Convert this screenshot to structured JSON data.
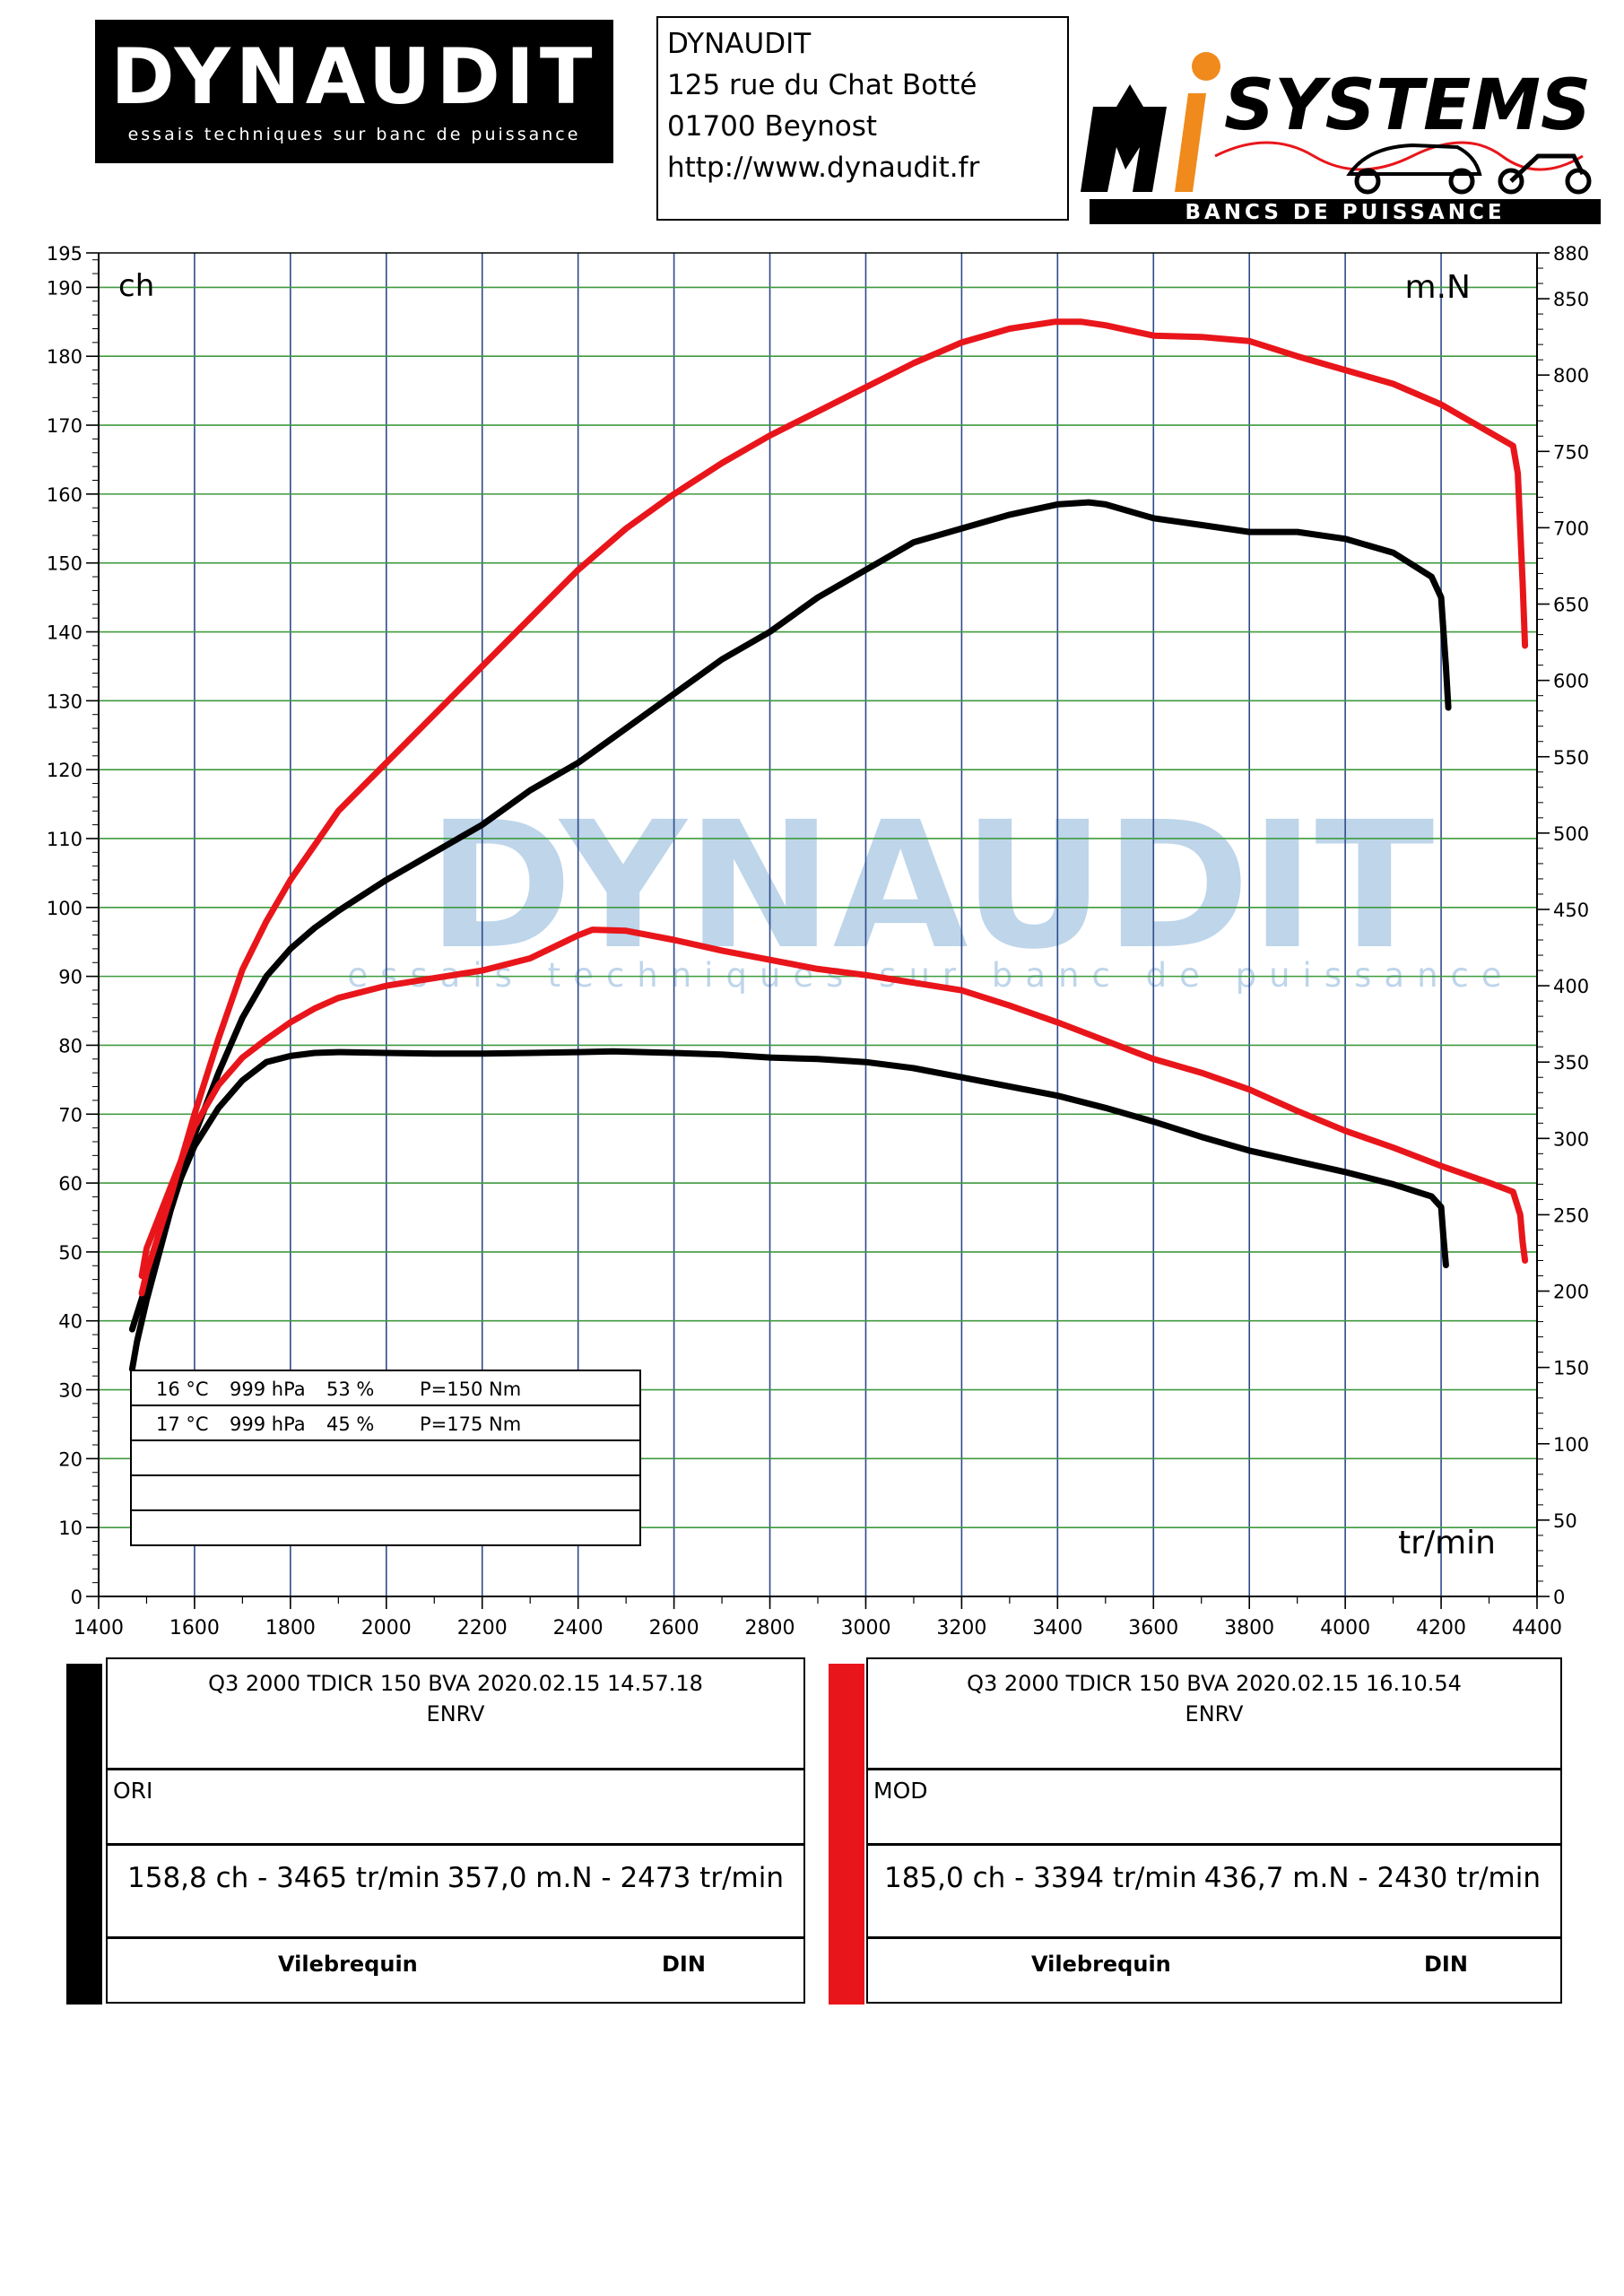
{
  "header": {
    "logo_text": "DYNAUDIT",
    "logo_tagline": "essais techniques sur banc de puissance",
    "address_lines": [
      "DYNAUDIT",
      "125 rue du Chat Botté",
      "01700 Beynost",
      "http://www.dynaudit.fr"
    ],
    "mi_logo_text": "SYSTEMS",
    "mi_logo_tagline": "BANCS DE PUISSANCE"
  },
  "colors": {
    "ori": "#000000",
    "mod": "#e8161b",
    "grid_h": "#3f9a3f",
    "grid_v": "#2e4a8a",
    "watermark": "#a9c7e4"
  },
  "watermark": {
    "text": "DYNAUDIT",
    "tagline": "essais techniques sur banc de puissance"
  },
  "conditions_table": {
    "rows": [
      [
        "16 °C",
        "999 hPa",
        "53 %",
        "P=150 Nm"
      ],
      [
        "17 °C",
        "999 hPa",
        "45 %",
        "P=175 Nm"
      ],
      [
        "",
        "",
        "",
        ""
      ],
      [
        "",
        "",
        "",
        ""
      ],
      [
        "",
        "",
        "",
        ""
      ]
    ]
  },
  "chart_data": {
    "type": "line",
    "left_axis_unit": "ch",
    "right_axis_unit": "m.N",
    "x_axis_unit": "tr/min",
    "xlim": [
      1400,
      4400
    ],
    "xticks": [
      1400,
      1600,
      1800,
      2000,
      2200,
      2400,
      2600,
      2800,
      3000,
      3200,
      3400,
      3600,
      3800,
      4000,
      4200,
      4400
    ],
    "ylim_left": [
      0,
      195
    ],
    "yticks_left": [
      0,
      10,
      20,
      30,
      40,
      50,
      60,
      70,
      80,
      90,
      100,
      110,
      120,
      130,
      140,
      150,
      160,
      170,
      180,
      190,
      195
    ],
    "ylim_right": [
      0,
      880
    ],
    "yticks_right": [
      0,
      50,
      100,
      150,
      200,
      250,
      300,
      350,
      400,
      450,
      500,
      550,
      600,
      650,
      700,
      750,
      800,
      850,
      880
    ],
    "series": [
      {
        "name": "ORI",
        "kind": "power",
        "axis": "left",
        "color": "#000000",
        "points": [
          [
            1470,
            33
          ],
          [
            1480,
            37
          ],
          [
            1500,
            43
          ],
          [
            1550,
            56
          ],
          [
            1600,
            67
          ],
          [
            1650,
            76
          ],
          [
            1700,
            84
          ],
          [
            1750,
            90
          ],
          [
            1800,
            94
          ],
          [
            1850,
            97
          ],
          [
            1900,
            99.5
          ],
          [
            2000,
            104
          ],
          [
            2100,
            108
          ],
          [
            2200,
            112
          ],
          [
            2300,
            117
          ],
          [
            2400,
            121
          ],
          [
            2500,
            126
          ],
          [
            2600,
            131
          ],
          [
            2700,
            136
          ],
          [
            2800,
            140
          ],
          [
            2900,
            145
          ],
          [
            3000,
            149
          ],
          [
            3100,
            153
          ],
          [
            3200,
            155
          ],
          [
            3300,
            157
          ],
          [
            3400,
            158.5
          ],
          [
            3465,
            158.8
          ],
          [
            3500,
            158.5
          ],
          [
            3600,
            156.5
          ],
          [
            3700,
            155.5
          ],
          [
            3800,
            154.5
          ],
          [
            3900,
            154.5
          ],
          [
            4000,
            153.5
          ],
          [
            4100,
            151.5
          ],
          [
            4180,
            148
          ],
          [
            4200,
            145
          ],
          [
            4205,
            140
          ],
          [
            4210,
            135
          ],
          [
            4215,
            129
          ]
        ]
      },
      {
        "name": "ORI",
        "kind": "torque",
        "axis": "right",
        "color": "#000000",
        "points": [
          [
            1470,
            175
          ],
          [
            1500,
            205
          ],
          [
            1550,
            258
          ],
          [
            1600,
            295
          ],
          [
            1650,
            320
          ],
          [
            1700,
            338
          ],
          [
            1750,
            350
          ],
          [
            1800,
            354
          ],
          [
            1850,
            356
          ],
          [
            1900,
            356.5
          ],
          [
            2000,
            356
          ],
          [
            2100,
            355.5
          ],
          [
            2200,
            355.5
          ],
          [
            2300,
            356
          ],
          [
            2400,
            356.5
          ],
          [
            2473,
            357
          ],
          [
            2600,
            356
          ],
          [
            2700,
            355
          ],
          [
            2800,
            353
          ],
          [
            2900,
            352
          ],
          [
            3000,
            350
          ],
          [
            3100,
            346
          ],
          [
            3200,
            340
          ],
          [
            3300,
            334
          ],
          [
            3400,
            328
          ],
          [
            3500,
            320
          ],
          [
            3600,
            311
          ],
          [
            3700,
            301
          ],
          [
            3800,
            292
          ],
          [
            3900,
            285
          ],
          [
            4000,
            278
          ],
          [
            4100,
            270
          ],
          [
            4180,
            262
          ],
          [
            4200,
            255
          ],
          [
            4205,
            235
          ],
          [
            4210,
            217
          ]
        ]
      },
      {
        "name": "MOD",
        "kind": "power",
        "axis": "left",
        "color": "#e8161b",
        "points": [
          [
            1490,
            44
          ],
          [
            1500,
            47
          ],
          [
            1550,
            58
          ],
          [
            1600,
            70
          ],
          [
            1650,
            81
          ],
          [
            1700,
            91
          ],
          [
            1750,
            98
          ],
          [
            1800,
            104
          ],
          [
            1850,
            109
          ],
          [
            1900,
            114
          ],
          [
            2000,
            121
          ],
          [
            2100,
            128
          ],
          [
            2200,
            135
          ],
          [
            2300,
            142
          ],
          [
            2400,
            149
          ],
          [
            2500,
            155
          ],
          [
            2600,
            160
          ],
          [
            2700,
            164.5
          ],
          [
            2800,
            168.5
          ],
          [
            2900,
            172
          ],
          [
            3000,
            175.5
          ],
          [
            3100,
            179
          ],
          [
            3200,
            182
          ],
          [
            3300,
            184
          ],
          [
            3394,
            185
          ],
          [
            3450,
            185
          ],
          [
            3500,
            184.5
          ],
          [
            3600,
            183
          ],
          [
            3700,
            182.8
          ],
          [
            3800,
            182.2
          ],
          [
            3900,
            180
          ],
          [
            4000,
            178
          ],
          [
            4100,
            176
          ],
          [
            4200,
            173
          ],
          [
            4300,
            169
          ],
          [
            4350,
            167
          ],
          [
            4360,
            163
          ],
          [
            4365,
            155
          ],
          [
            4370,
            147
          ],
          [
            4375,
            138
          ]
        ]
      },
      {
        "name": "MOD",
        "kind": "torque",
        "axis": "right",
        "color": "#e8161b",
        "points": [
          [
            1490,
            210
          ],
          [
            1500,
            228
          ],
          [
            1550,
            268
          ],
          [
            1600,
            308
          ],
          [
            1650,
            335
          ],
          [
            1700,
            353
          ],
          [
            1750,
            365
          ],
          [
            1800,
            376
          ],
          [
            1850,
            385
          ],
          [
            1900,
            392
          ],
          [
            2000,
            400
          ],
          [
            2100,
            405
          ],
          [
            2200,
            410
          ],
          [
            2300,
            418
          ],
          [
            2400,
            433
          ],
          [
            2430,
            436.7
          ],
          [
            2500,
            436
          ],
          [
            2600,
            430
          ],
          [
            2700,
            423
          ],
          [
            2800,
            417
          ],
          [
            2900,
            411
          ],
          [
            3000,
            407
          ],
          [
            3100,
            402
          ],
          [
            3200,
            397
          ],
          [
            3300,
            387
          ],
          [
            3400,
            376
          ],
          [
            3500,
            364
          ],
          [
            3600,
            352
          ],
          [
            3700,
            343
          ],
          [
            3800,
            332
          ],
          [
            3900,
            318
          ],
          [
            4000,
            305
          ],
          [
            4100,
            294
          ],
          [
            4200,
            282
          ],
          [
            4300,
            271
          ],
          [
            4350,
            265
          ],
          [
            4365,
            250
          ],
          [
            4370,
            232
          ],
          [
            4375,
            220
          ]
        ]
      }
    ]
  },
  "panels": [
    {
      "id": "ori",
      "color": "#000000",
      "title_line1": "Q3 2000 TDICR 150 BVA   2020.02.15 14.57.18",
      "title_line2": "ENRV",
      "label": "ORI",
      "power_result": "158,8 ch - 3465 tr/min",
      "torque_result": "357,0 m.N - 2473 tr/min",
      "footer_left": "Vilebrequin",
      "footer_right": "DIN"
    },
    {
      "id": "mod",
      "color": "#e8161b",
      "title_line1": "Q3 2000 TDICR 150 BVA   2020.02.15 16.10.54",
      "title_line2": "ENRV",
      "label": "MOD",
      "power_result": "185,0 ch - 3394 tr/min",
      "torque_result": "436,7 m.N - 2430 tr/min",
      "footer_left": "Vilebrequin",
      "footer_right": "DIN"
    }
  ]
}
